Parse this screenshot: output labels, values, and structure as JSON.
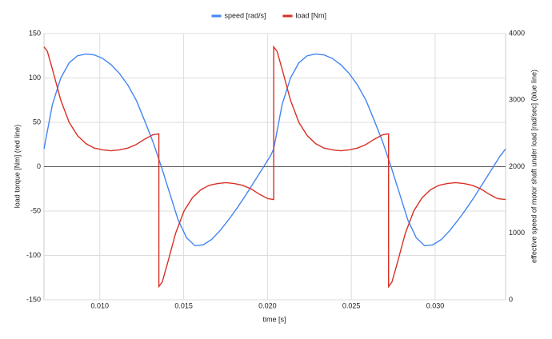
{
  "chart_data": {
    "type": "line",
    "xlabel": "time [s]",
    "ylabel": "load torque [Nm] (red line)",
    "y2label": "effective speed of motor shaft under load [rad/sec] (blue line)",
    "xlim": [
      0.00667,
      0.0342
    ],
    "xticks": [
      {
        "value": 0.01,
        "label": "0.010"
      },
      0.015,
      {
        "value": 0.02,
        "label": "0.020"
      },
      0.025,
      {
        "value": 0.03,
        "label": "0.030"
      }
    ],
    "ylim": [
      -150,
      150
    ],
    "yticks": [
      -150,
      -100,
      -50,
      0,
      50,
      100,
      150
    ],
    "y2lim": [
      0,
      4000
    ],
    "y2ticks": [
      0,
      1000,
      2000,
      3000,
      4000
    ],
    "grid": true,
    "legend": "top",
    "series": [
      {
        "name": "speed [rad/s]",
        "color": "#4285f4",
        "axis": "y2",
        "x": [
          0.00667,
          0.00717,
          0.00767,
          0.00817,
          0.00867,
          0.00917,
          0.00967,
          0.01017,
          0.01067,
          0.01117,
          0.01167,
          0.01217,
          0.01267,
          0.01317,
          0.01367,
          0.01417,
          0.01467,
          0.01517,
          0.01567,
          0.01617,
          0.01667,
          0.01717,
          0.01767,
          0.01817,
          0.01867,
          0.01917,
          0.01967,
          0.02017,
          0.02037,
          0.02087,
          0.02137,
          0.02187,
          0.02237,
          0.02287,
          0.02337,
          0.02387,
          0.02437,
          0.02487,
          0.02537,
          0.02587,
          0.02637,
          0.02687,
          0.02737,
          0.02787,
          0.02837,
          0.02887,
          0.02937,
          0.02987,
          0.03037,
          0.03087,
          0.03137,
          0.03187,
          0.03237,
          0.03287,
          0.03337,
          0.03387,
          0.0342
        ],
        "values": [
          2267,
          2933,
          3333,
          3560,
          3667,
          3693,
          3680,
          3627,
          3533,
          3400,
          3227,
          3000,
          2693,
          2373,
          2000,
          1600,
          1200,
          933,
          813,
          827,
          907,
          1040,
          1200,
          1373,
          1560,
          1760,
          1960,
          2160,
          2267,
          2933,
          3333,
          3560,
          3667,
          3693,
          3680,
          3627,
          3533,
          3400,
          3227,
          3000,
          2693,
          2373,
          2000,
          1600,
          1200,
          933,
          813,
          827,
          907,
          1040,
          1200,
          1373,
          1560,
          1760,
          1960,
          2160,
          2267
        ]
      },
      {
        "name": "load [Nm]",
        "color": "#d93025",
        "axis": "y",
        "x": [
          0.00667,
          0.00687,
          0.00717,
          0.00767,
          0.00817,
          0.00867,
          0.00917,
          0.00967,
          0.01017,
          0.01067,
          0.01117,
          0.01167,
          0.01217,
          0.01267,
          0.01317,
          0.01352,
          0.01352,
          0.01372,
          0.01402,
          0.01452,
          0.01502,
          0.01552,
          0.01602,
          0.01652,
          0.01702,
          0.01752,
          0.01802,
          0.01852,
          0.01902,
          0.01952,
          0.02002,
          0.02037,
          0.02037,
          0.02057,
          0.02087,
          0.02137,
          0.02187,
          0.02237,
          0.02287,
          0.02337,
          0.02387,
          0.02437,
          0.02487,
          0.02537,
          0.02587,
          0.02637,
          0.02687,
          0.02722,
          0.02722,
          0.02742,
          0.02772,
          0.02822,
          0.02872,
          0.02922,
          0.02972,
          0.03022,
          0.03072,
          0.03122,
          0.03172,
          0.03222,
          0.03272,
          0.03322,
          0.03372,
          0.0342
        ],
        "values": [
          135,
          130,
          110,
          75,
          50,
          35,
          26,
          21,
          19,
          18,
          19,
          21,
          25,
          31,
          36,
          37,
          -135,
          -130,
          -110,
          -75,
          -50,
          -35,
          -26,
          -21,
          -19,
          -18,
          -19,
          -21,
          -25,
          -31,
          -36,
          -37,
          135,
          130,
          110,
          75,
          50,
          35,
          26,
          21,
          19,
          18,
          19,
          21,
          25,
          31,
          36,
          37,
          -135,
          -130,
          -110,
          -75,
          -50,
          -35,
          -26,
          -21,
          -19,
          -18,
          -19,
          -21,
          -25,
          -31,
          -36,
          -37
        ]
      }
    ]
  }
}
